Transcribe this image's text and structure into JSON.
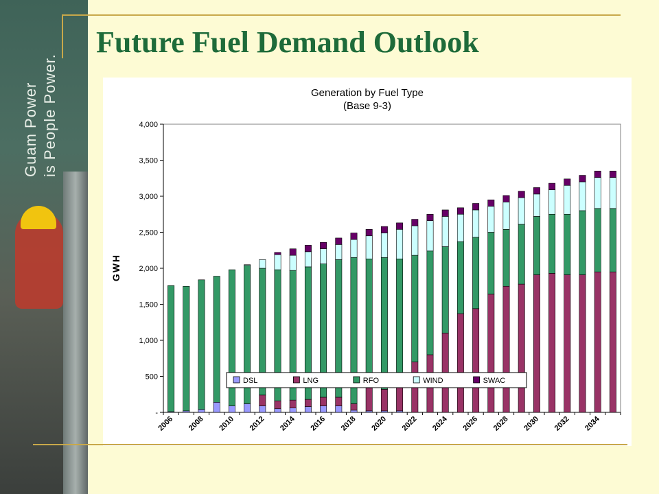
{
  "slide": {
    "title": "Future Fuel Demand Outlook",
    "logo_line1": "Guam Power",
    "logo_line2": "is People Power."
  },
  "colors": {
    "background": "#fdfbd4",
    "title": "#1e6b3a",
    "rule": "#c8a84a"
  },
  "chart_data": {
    "type": "bar",
    "stacked": true,
    "title": "Generation by Fuel Type",
    "subtitle": "(Base 9-3)",
    "xlabel": "",
    "ylabel": "GWH",
    "ylim": [
      0,
      4000
    ],
    "yticks": [
      0,
      500,
      1000,
      1500,
      2000,
      2500,
      3000,
      3500,
      4000
    ],
    "ytick_labels": [
      "-",
      "500",
      "1,000",
      "1,500",
      "2,000",
      "2,500",
      "3,000",
      "3,500",
      "4,000"
    ],
    "grid": false,
    "legend_position": "bottom",
    "categories": [
      "2006",
      "2007",
      "2008",
      "2009",
      "2010",
      "2011",
      "2012",
      "2013",
      "2014",
      "2015",
      "2016",
      "2017",
      "2018",
      "2019",
      "2020",
      "2021",
      "2022",
      "2023",
      "2024",
      "2025",
      "2026",
      "2027",
      "2028",
      "2029",
      "2030",
      "2031",
      "2032",
      "2033",
      "2034",
      "2035"
    ],
    "xtick_labels": [
      "2006",
      "2008",
      "2010",
      "2012",
      "2014",
      "2016",
      "2018",
      "2020",
      "2022",
      "2024",
      "2026",
      "2028",
      "2030",
      "2032",
      "2034"
    ],
    "series": [
      {
        "name": "DSL",
        "color": "#9999ff",
        "values": [
          10,
          20,
          40,
          140,
          90,
          120,
          90,
          50,
          60,
          80,
          90,
          90,
          30,
          20,
          20,
          20,
          0,
          0,
          0,
          0,
          0,
          0,
          0,
          0,
          0,
          0,
          0,
          0,
          0,
          0
        ]
      },
      {
        "name": "LNG",
        "color": "#993366",
        "values": [
          0,
          0,
          0,
          0,
          0,
          0,
          150,
          110,
          110,
          100,
          120,
          120,
          90,
          320,
          300,
          360,
          700,
          800,
          1100,
          1370,
          1440,
          1640,
          1750,
          1780,
          1910,
          1930,
          1910,
          1910,
          1950,
          1950
        ]
      },
      {
        "name": "RFO",
        "color": "#339966",
        "values": [
          1750,
          1730,
          1800,
          1750,
          1890,
          1920,
          1760,
          1820,
          1800,
          1840,
          1850,
          1910,
          2030,
          1790,
          1830,
          1750,
          1480,
          1440,
          1200,
          1000,
          990,
          860,
          790,
          830,
          810,
          820,
          840,
          890,
          880,
          880
        ]
      },
      {
        "name": "WIND",
        "color": "#ccffff",
        "values": [
          0,
          0,
          0,
          0,
          0,
          10,
          120,
          210,
          210,
          210,
          210,
          210,
          250,
          320,
          340,
          410,
          410,
          420,
          420,
          380,
          380,
          360,
          380,
          370,
          310,
          340,
          400,
          400,
          430,
          430
        ]
      },
      {
        "name": "SWAC",
        "color": "#660066",
        "values": [
          0,
          0,
          0,
          0,
          0,
          0,
          0,
          30,
          90,
          90,
          90,
          90,
          90,
          90,
          90,
          90,
          90,
          90,
          90,
          90,
          90,
          90,
          90,
          90,
          90,
          90,
          90,
          90,
          90,
          90
        ]
      }
    ]
  }
}
